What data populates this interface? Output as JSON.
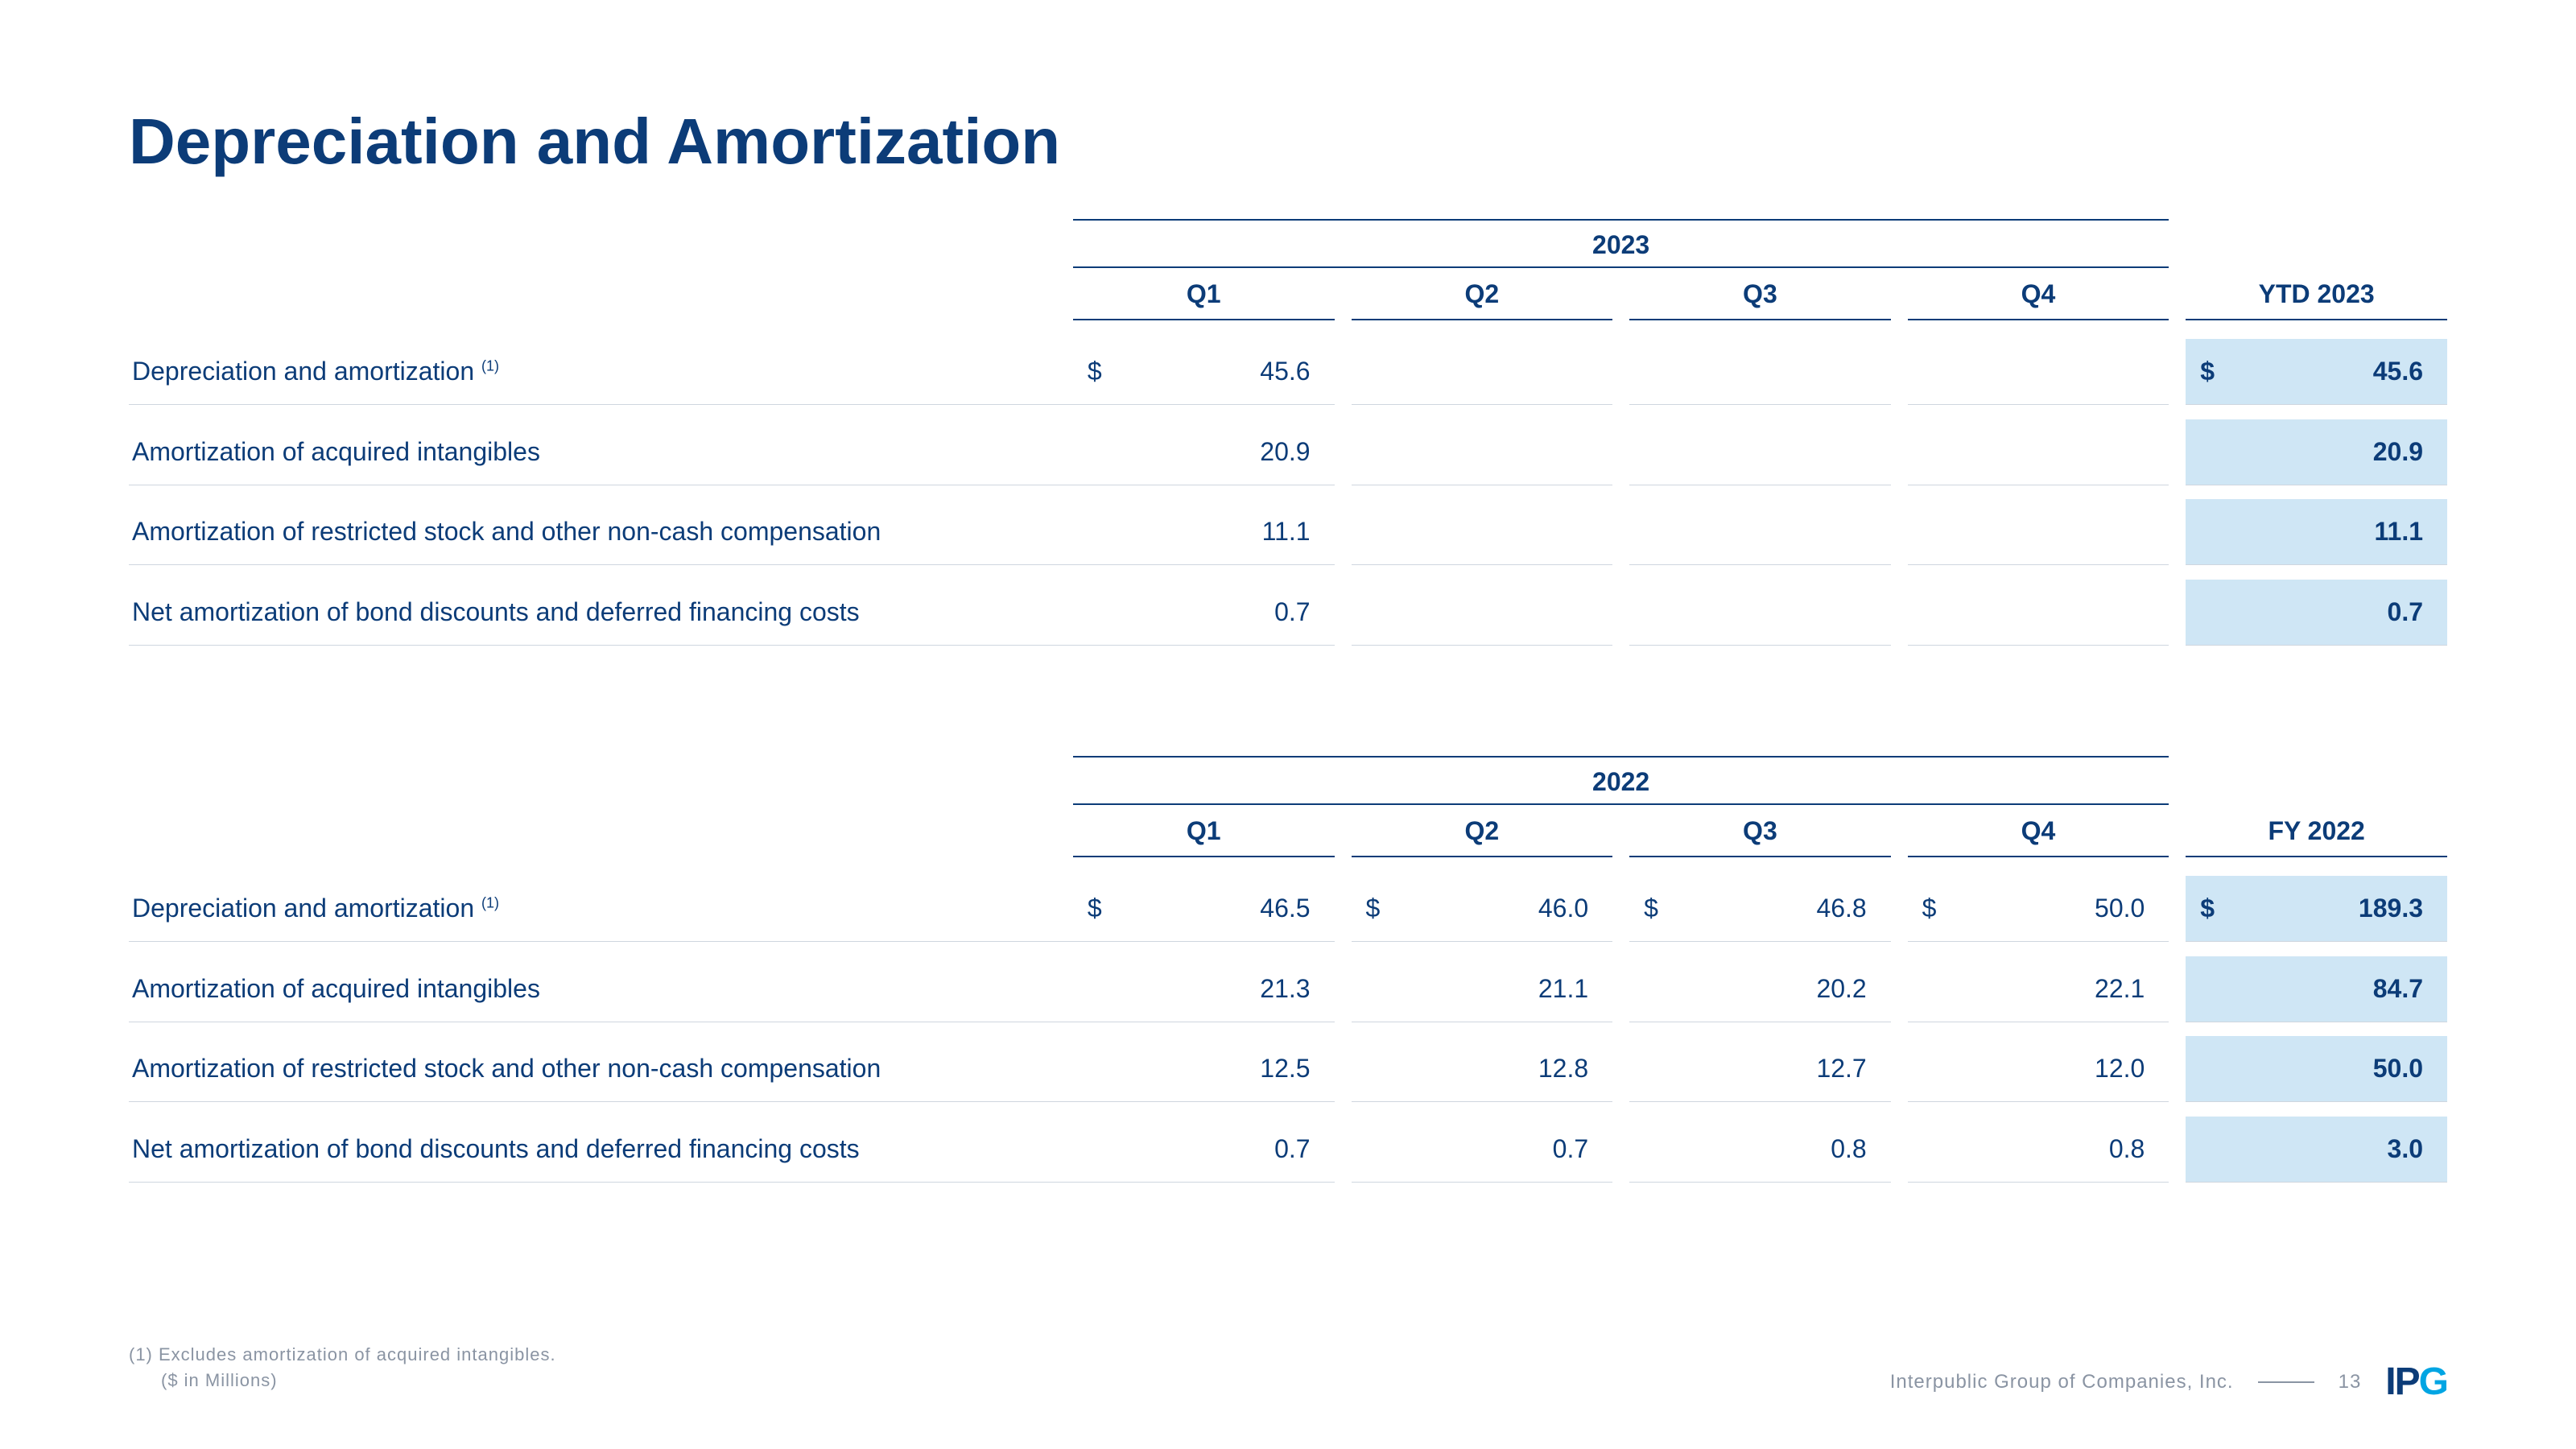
{
  "colors": {
    "primary": "#0c3c78",
    "text": "#0c3c78",
    "row_border": "#cfd6df",
    "header_border": "#0c3c78",
    "ytd_bg": "#cfe6f5",
    "footnote": "#8a94a3",
    "logo_accent": "#00a5e3"
  },
  "title": "Depreciation and Amortization",
  "tables": [
    {
      "year": "2023",
      "quarters": [
        "Q1",
        "Q2",
        "Q3",
        "Q4"
      ],
      "total_label": "YTD 2023",
      "rows": [
        {
          "label": "Depreciation and amortization ",
          "note": "(1)",
          "sym": [
            "$",
            "",
            "",
            "",
            "$"
          ],
          "vals": [
            "45.6",
            "",
            "",
            "",
            "45.6"
          ]
        },
        {
          "label": "Amortization of acquired intangibles",
          "note": "",
          "sym": [
            "",
            "",
            "",
            "",
            ""
          ],
          "vals": [
            "20.9",
            "",
            "",
            "",
            "20.9"
          ]
        },
        {
          "label": "Amortization of restricted stock and other non-cash compensation",
          "note": "",
          "sym": [
            "",
            "",
            "",
            "",
            ""
          ],
          "vals": [
            "11.1",
            "",
            "",
            "",
            "11.1"
          ]
        },
        {
          "label": "Net amortization of bond discounts and deferred financing costs",
          "note": "",
          "sym": [
            "",
            "",
            "",
            "",
            ""
          ],
          "vals": [
            "0.7",
            "",
            "",
            "",
            "0.7"
          ]
        }
      ]
    },
    {
      "year": "2022",
      "quarters": [
        "Q1",
        "Q2",
        "Q3",
        "Q4"
      ],
      "total_label": "FY 2022",
      "rows": [
        {
          "label": "Depreciation and amortization ",
          "note": "(1)",
          "sym": [
            "$",
            "$",
            "$",
            "$",
            "$"
          ],
          "vals": [
            "46.5",
            "46.0",
            "46.8",
            "50.0",
            "189.3"
          ]
        },
        {
          "label": "Amortization of acquired intangibles",
          "note": "",
          "sym": [
            "",
            "",
            "",
            "",
            ""
          ],
          "vals": [
            "21.3",
            "21.1",
            "20.2",
            "22.1",
            "84.7"
          ]
        },
        {
          "label": "Amortization of restricted stock and other non-cash compensation",
          "note": "",
          "sym": [
            "",
            "",
            "",
            "",
            ""
          ],
          "vals": [
            "12.5",
            "12.8",
            "12.7",
            "12.0",
            "50.0"
          ]
        },
        {
          "label": "Net amortization of bond discounts and deferred financing costs",
          "note": "",
          "sym": [
            "",
            "",
            "",
            "",
            ""
          ],
          "vals": [
            "0.7",
            "0.7",
            "0.8",
            "0.8",
            "3.0"
          ]
        }
      ]
    }
  ],
  "footnote": "(1)  Excludes amortization of acquired intangibles.",
  "unit_note": "($ in Millions)",
  "company": "Interpublic Group of Companies, Inc.",
  "page_number": "13",
  "logo_text": "IPG"
}
